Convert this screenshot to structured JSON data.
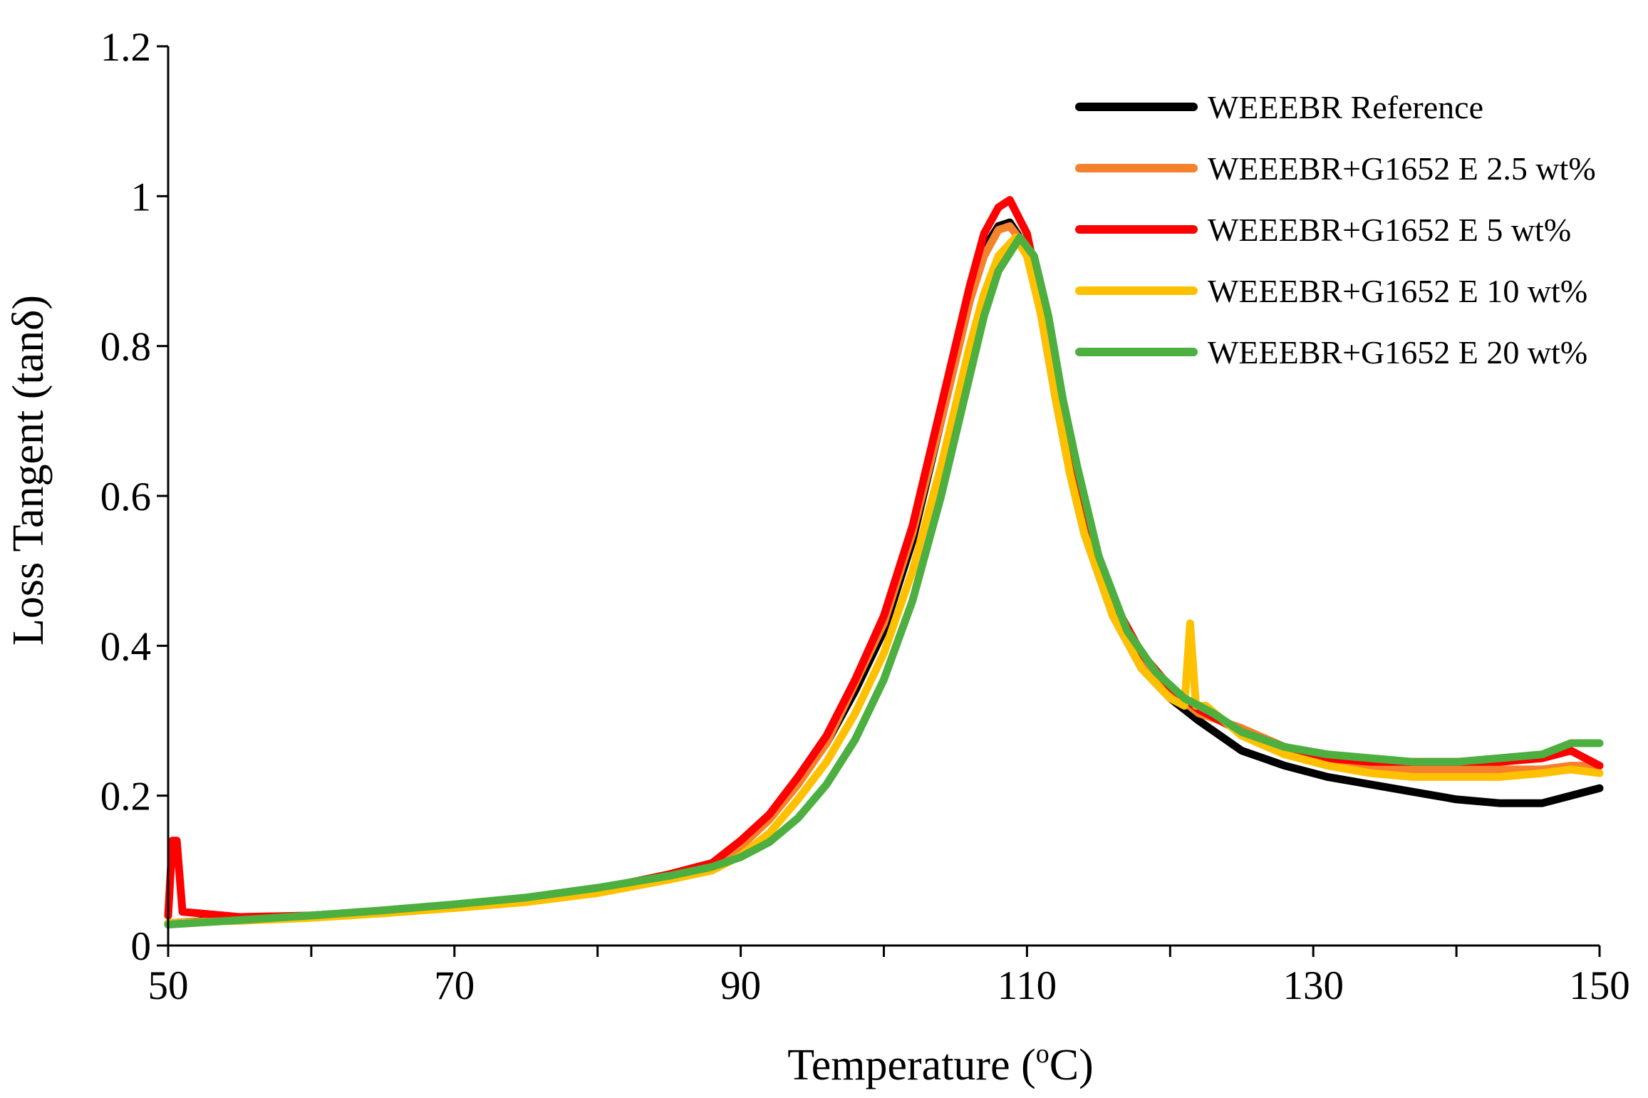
{
  "chart_data": {
    "type": "line",
    "title": "",
    "xlabel_main": "Temperature (",
    "xlabel_sup": "o",
    "xlabel_end": "C)",
    "ylabel": "Loss Tangent (tanδ)",
    "xlim": [
      50,
      150
    ],
    "ylim": [
      0,
      1.2
    ],
    "x_ticks": [
      50,
      70,
      90,
      110,
      130,
      150
    ],
    "x_tick_labels": [
      "50",
      "70",
      "90",
      "110",
      "130",
      "150"
    ],
    "y_ticks": [
      0,
      0.2,
      0.4,
      0.6,
      0.8,
      1,
      1.2
    ],
    "y_tick_labels": [
      "0",
      "0.2",
      "0.4",
      "0.6",
      "0.8",
      "1",
      "1.2"
    ],
    "grid": false,
    "legend_position": "top-right",
    "series": [
      {
        "name": "WEEEBR Reference",
        "color": "#000000",
        "x": [
          50,
          55,
          60,
          65,
          70,
          75,
          80,
          85,
          88,
          90,
          92,
          94,
          96,
          98,
          100,
          102,
          104,
          106,
          107,
          108,
          108.8,
          110,
          111,
          112,
          113,
          114,
          116,
          118,
          120,
          122,
          125,
          128,
          131,
          134,
          137,
          140,
          143,
          146,
          148,
          150
        ],
        "y": [
          0.03,
          0.035,
          0.04,
          0.046,
          0.053,
          0.062,
          0.075,
          0.095,
          0.11,
          0.135,
          0.17,
          0.22,
          0.27,
          0.34,
          0.42,
          0.54,
          0.7,
          0.86,
          0.93,
          0.96,
          0.965,
          0.93,
          0.84,
          0.73,
          0.63,
          0.55,
          0.44,
          0.37,
          0.33,
          0.3,
          0.26,
          0.24,
          0.225,
          0.215,
          0.205,
          0.195,
          0.19,
          0.19,
          0.2,
          0.21
        ]
      },
      {
        "name": "WEEEBR+G1652 E 2.5 wt%",
        "color": "#f4812c",
        "x": [
          50,
          55,
          60,
          65,
          70,
          75,
          80,
          85,
          88,
          90,
          92,
          94,
          96,
          98,
          100,
          102,
          104,
          106,
          107,
          108,
          108.8,
          110,
          111,
          112,
          113,
          114,
          116,
          118,
          120,
          122,
          125,
          128,
          131,
          134,
          137,
          140,
          143,
          146,
          148,
          150
        ],
        "y": [
          0.03,
          0.034,
          0.039,
          0.045,
          0.052,
          0.061,
          0.074,
          0.093,
          0.108,
          0.132,
          0.168,
          0.215,
          0.27,
          0.35,
          0.43,
          0.55,
          0.7,
          0.86,
          0.92,
          0.955,
          0.96,
          0.93,
          0.84,
          0.73,
          0.63,
          0.55,
          0.45,
          0.38,
          0.34,
          0.31,
          0.29,
          0.265,
          0.25,
          0.24,
          0.235,
          0.235,
          0.235,
          0.235,
          0.24,
          0.24
        ]
      },
      {
        "name": "WEEEBR+G1652 E 5 wt%",
        "color": "#fe0000",
        "x": [
          50,
          50.3,
          50.6,
          51,
          55,
          60,
          65,
          70,
          75,
          80,
          85,
          88,
          90,
          92,
          94,
          96,
          98,
          100,
          102,
          104,
          106,
          107,
          108,
          108.8,
          110,
          111,
          112,
          113,
          114,
          116,
          118,
          120,
          122,
          125,
          128,
          131,
          134,
          137,
          140,
          143,
          146,
          148,
          150
        ],
        "y": [
          0.04,
          0.14,
          0.14,
          0.045,
          0.038,
          0.04,
          0.046,
          0.053,
          0.062,
          0.075,
          0.095,
          0.11,
          0.14,
          0.175,
          0.225,
          0.28,
          0.355,
          0.44,
          0.56,
          0.72,
          0.88,
          0.95,
          0.985,
          0.995,
          0.95,
          0.86,
          0.74,
          0.64,
          0.56,
          0.46,
          0.39,
          0.345,
          0.315,
          0.285,
          0.265,
          0.25,
          0.245,
          0.245,
          0.245,
          0.245,
          0.25,
          0.26,
          0.24
        ]
      },
      {
        "name": "WEEEBR+G1652 E 10 wt%",
        "color": "#ffc000",
        "x": [
          50,
          55,
          60,
          65,
          70,
          75,
          80,
          85,
          88,
          90,
          92,
          94,
          96,
          98,
          100,
          102,
          104,
          106,
          107,
          108,
          109.2,
          110,
          111,
          112,
          113,
          114,
          116,
          118,
          120,
          121,
          121.4,
          121.8,
          122.5,
          125,
          128,
          131,
          134,
          137,
          140,
          143,
          146,
          148,
          150
        ],
        "y": [
          0.03,
          0.033,
          0.037,
          0.043,
          0.05,
          0.058,
          0.07,
          0.088,
          0.1,
          0.12,
          0.15,
          0.195,
          0.245,
          0.31,
          0.39,
          0.5,
          0.64,
          0.8,
          0.87,
          0.92,
          0.945,
          0.92,
          0.84,
          0.73,
          0.63,
          0.55,
          0.44,
          0.37,
          0.33,
          0.32,
          0.43,
          0.32,
          0.32,
          0.28,
          0.255,
          0.24,
          0.23,
          0.225,
          0.225,
          0.225,
          0.23,
          0.235,
          0.23
        ]
      },
      {
        "name": "WEEEBR+G1652 E 20 wt%",
        "color": "#4caf3f",
        "x": [
          50,
          55,
          60,
          65,
          70,
          75,
          80,
          85,
          88,
          90,
          92,
          94,
          96,
          98,
          100,
          102,
          104,
          106,
          107,
          108,
          109.5,
          110.5,
          111.5,
          112.5,
          113.5,
          115,
          117,
          119,
          121,
          123,
          125,
          128,
          131,
          134,
          137,
          140,
          143,
          146,
          148,
          150
        ],
        "y": [
          0.028,
          0.034,
          0.04,
          0.047,
          0.055,
          0.064,
          0.077,
          0.093,
          0.105,
          0.118,
          0.138,
          0.17,
          0.215,
          0.275,
          0.355,
          0.46,
          0.6,
          0.76,
          0.84,
          0.9,
          0.945,
          0.92,
          0.84,
          0.73,
          0.64,
          0.52,
          0.42,
          0.365,
          0.33,
          0.31,
          0.285,
          0.265,
          0.255,
          0.25,
          0.245,
          0.245,
          0.25,
          0.255,
          0.27,
          0.27
        ]
      }
    ]
  }
}
